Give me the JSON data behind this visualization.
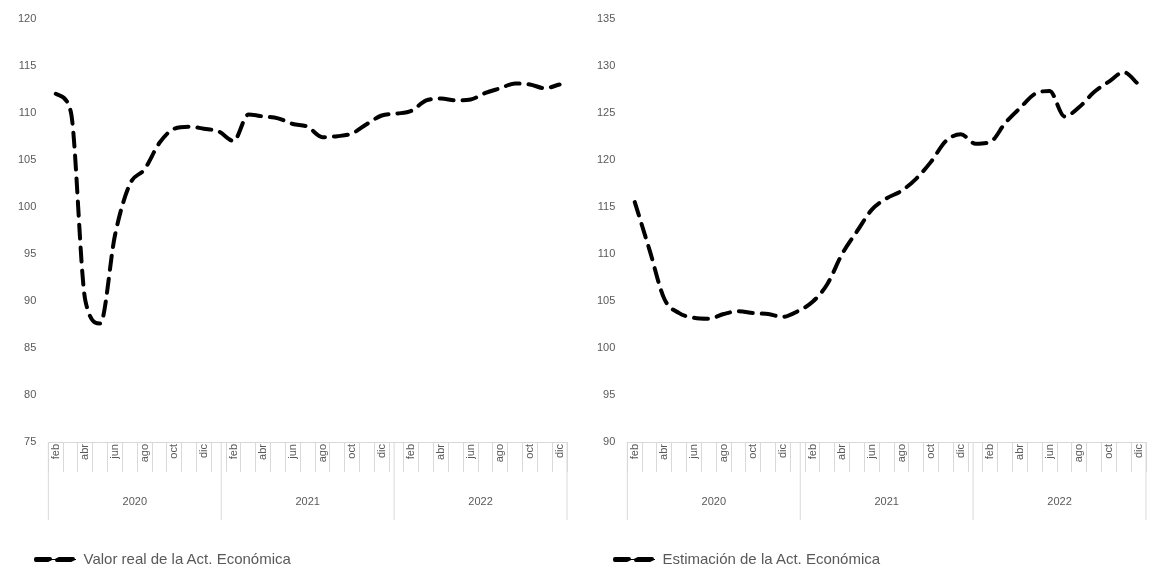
{
  "chart_data": [
    {
      "type": "line",
      "categories": [
        "feb",
        null,
        "abr",
        null,
        "jun",
        null,
        "ago",
        null,
        "oct",
        null,
        "dic",
        null,
        "feb",
        null,
        "abr",
        null,
        "jun",
        null,
        "ago",
        null,
        "oct",
        null,
        "dic",
        null,
        "feb",
        null,
        "abr",
        null,
        "jun",
        null,
        "ago",
        null,
        "oct",
        null,
        "dic"
      ],
      "series": [
        {
          "name": "Valor real de la Act. Económica",
          "color": "#000000",
          "values": [
            112,
            110.2,
            90,
            87.6,
            97,
            102.4,
            104,
            106.8,
            108.3,
            108.5,
            108.3,
            108,
            107,
            109.8,
            109.6,
            109.4,
            108.8,
            108.5,
            107.4,
            107.5,
            107.8,
            108.8,
            109.7,
            109.9,
            110.2,
            111.3,
            111.5,
            111.3,
            111.4,
            112.1,
            112.6,
            113.1,
            113,
            112.6,
            113
          ]
        }
      ],
      "ylim": [
        75,
        120
      ],
      "yticks": [
        75,
        80,
        85,
        90,
        95,
        100,
        105,
        110,
        115,
        120
      ],
      "annotations": [
        "2020",
        "2021",
        "2022"
      ],
      "grid": false,
      "legend": "bottom",
      "line_style": "dashed",
      "marker": "none"
    },
    {
      "type": "line",
      "categories": [
        "feb",
        null,
        "abr",
        null,
        "jun",
        null,
        "ago",
        null,
        "oct",
        null,
        "dic",
        null,
        "feb",
        null,
        "abr",
        null,
        "jun",
        null,
        "ago",
        null,
        "oct",
        null,
        "dic",
        null,
        "feb",
        null,
        "abr",
        null,
        "jun",
        null,
        "ago",
        null,
        "oct",
        null,
        "dic"
      ],
      "series": [
        {
          "name": "Estimación de la Act. Económica",
          "color": "#000000",
          "values": [
            115.5,
            110.4,
            105.2,
            103.7,
            103.2,
            103.1,
            103.6,
            103.9,
            103.7,
            103.6,
            103.3,
            103.9,
            104.9,
            106.8,
            110,
            112.4,
            114.7,
            115.9,
            116.7,
            118,
            119.8,
            122,
            122.7,
            121.7,
            121.9,
            123.9,
            125.5,
            127,
            127.3,
            124.6,
            125.6,
            127.2,
            128.3,
            129.3,
            128
          ]
        }
      ],
      "ylim": [
        90,
        135
      ],
      "yticks": [
        90,
        95,
        100,
        105,
        110,
        115,
        120,
        125,
        130,
        135
      ],
      "annotations": [
        "2020",
        "2021",
        "2022"
      ],
      "grid": false,
      "legend": "bottom",
      "line_style": "dashed",
      "marker": "none"
    }
  ]
}
